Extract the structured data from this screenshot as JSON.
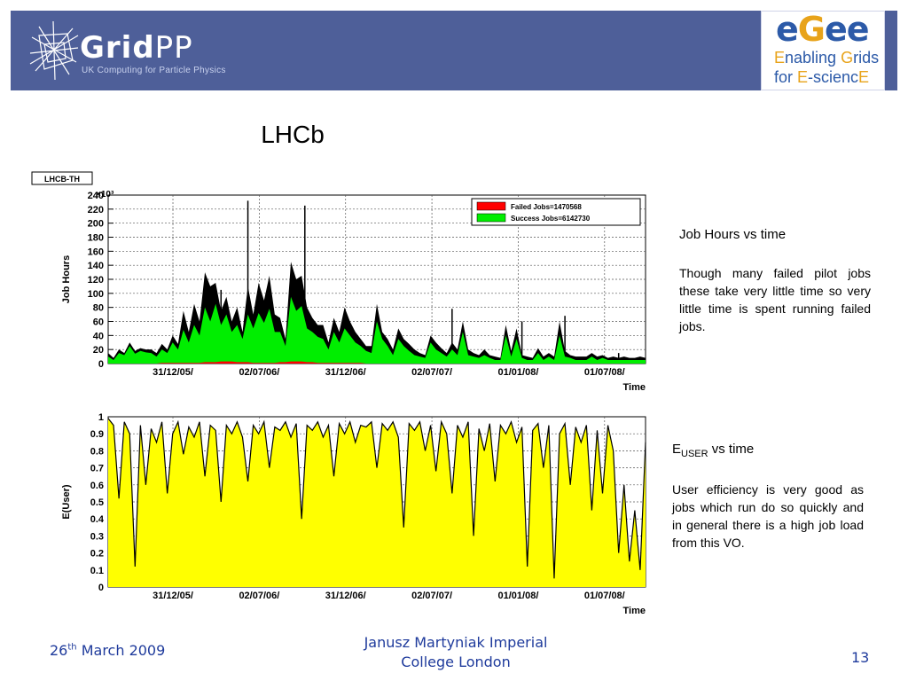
{
  "header": {
    "gridpp_name_bold": "Grid",
    "gridpp_name_light": "PP",
    "gridpp_tagline": "UK Computing for Particle Physics",
    "egee_name": {
      "e1": "e",
      "g": "G",
      "e2": "ee"
    },
    "egee_line1": {
      "a": "E",
      "b": "nabling ",
      "c": "G",
      "d": "rids"
    },
    "egee_line2": {
      "a": "for ",
      "b": "E",
      "c": "-scienc",
      "d": "E"
    },
    "bar_color": "#4e5f99"
  },
  "slide": {
    "title": "LHCb",
    "panel1": {
      "heading": "Job Hours vs time",
      "text": "Though many failed pilot jobs these take very little time so very little time is spent running failed jobs."
    },
    "panel2": {
      "heading_main": "E",
      "heading_sub": "USER",
      "heading_rest": " vs time",
      "text": "User efficiency is very good as jobs which run do so quickly and in general there is a high job load from this VO."
    }
  },
  "footer": {
    "date_day": "26",
    "date_suffix": "th",
    "date_rest": " March 2009",
    "author_line1": "Janusz Martyniak Imperial",
    "author_line2": "College London",
    "page": "13"
  },
  "chart_data": [
    {
      "type": "area",
      "title": "LHCB-TH",
      "ylabel": "Job Hours",
      "ylabel_multiplier": "×10³",
      "xlabel": "Time",
      "ylim": [
        0,
        240
      ],
      "yticks": [
        "0",
        "20",
        "40",
        "60",
        "80",
        "100",
        "120",
        "140",
        "160",
        "180",
        "200",
        "220",
        "240"
      ],
      "xticks": [
        "31/12/05/",
        "02/07/06/",
        "31/12/06/",
        "02/07/07/",
        "01/01/08/",
        "01/07/08/"
      ],
      "grid": true,
      "legend_position": "top-right",
      "stacked": true,
      "x_index_range": [
        0,
        100
      ],
      "series": [
        {
          "name": "Failed Jobs=1470568",
          "color": "#ff0000",
          "values": [
            0,
            0,
            0,
            0,
            0,
            0,
            0,
            0,
            0,
            0,
            1,
            1,
            1,
            1,
            1,
            1,
            1,
            1,
            2,
            2,
            2,
            3,
            3,
            3,
            2,
            2,
            2,
            1,
            1,
            1,
            1,
            1,
            2,
            2,
            3,
            3,
            3,
            2,
            2,
            1,
            1,
            1,
            1,
            1,
            1,
            1,
            1,
            1,
            0,
            0,
            0,
            0,
            0,
            0,
            0,
            0,
            0,
            0,
            0,
            0,
            0,
            0,
            0,
            0,
            0,
            0,
            0,
            0,
            0,
            0,
            0,
            0,
            0,
            0,
            0,
            0,
            0,
            0,
            0,
            0,
            0,
            0,
            0,
            0,
            0,
            0,
            0,
            0,
            0,
            0,
            0,
            0,
            0,
            0,
            0,
            0,
            0,
            0,
            0,
            0,
            0
          ]
        },
        {
          "name": "Success Jobs=6142730",
          "color": "#00ee00",
          "values": [
            10,
            5,
            15,
            12,
            25,
            14,
            18,
            16,
            15,
            10,
            20,
            15,
            30,
            20,
            48,
            30,
            55,
            40,
            80,
            60,
            85,
            55,
            70,
            45,
            55,
            35,
            70,
            50,
            72,
            58,
            78,
            45,
            45,
            25,
            95,
            75,
            82,
            50,
            45,
            38,
            35,
            20,
            45,
            30,
            50,
            40,
            30,
            25,
            18,
            15,
            60,
            35,
            25,
            12,
            35,
            25,
            18,
            12,
            10,
            8,
            30,
            20,
            15,
            10,
            20,
            12,
            45,
            12,
            10,
            8,
            12,
            8,
            5,
            5,
            40,
            10,
            35,
            8,
            5,
            5,
            15,
            5,
            10,
            5,
            40,
            10,
            8,
            5,
            5,
            5,
            10,
            5,
            8,
            5,
            5,
            5,
            5,
            5,
            5,
            5,
            5
          ]
        }
      ],
      "envelope_values": [
        15,
        8,
        20,
        15,
        30,
        18,
        22,
        20,
        20,
        15,
        28,
        20,
        40,
        28,
        75,
        45,
        85,
        60,
        130,
        110,
        115,
        75,
        95,
        60,
        80,
        45,
        110,
        70,
        115,
        90,
        125,
        70,
        65,
        35,
        145,
        120,
        125,
        80,
        65,
        55,
        55,
        30,
        65,
        45,
        80,
        60,
        45,
        35,
        25,
        25,
        85,
        45,
        35,
        20,
        50,
        35,
        28,
        20,
        15,
        12,
        40,
        30,
        22,
        15,
        30,
        20,
        60,
        20,
        15,
        12,
        20,
        12,
        10,
        8,
        55,
        18,
        50,
        12,
        10,
        8,
        22,
        10,
        15,
        10,
        60,
        18,
        12,
        10,
        10,
        10,
        15,
        10,
        12,
        8,
        10,
        8,
        10,
        8,
        8,
        10,
        8
      ],
      "spikes": [
        {
          "x": 26,
          "y": 232
        },
        {
          "x": 21,
          "y": 105
        },
        {
          "x": 36.6,
          "y": 225
        },
        {
          "x": 64,
          "y": 78
        },
        {
          "x": 77,
          "y": 60
        },
        {
          "x": 85,
          "y": 68
        },
        {
          "x": 95,
          "y": 15
        }
      ]
    },
    {
      "type": "area",
      "title": "",
      "ylabel": "E(User)",
      "xlabel": "Time",
      "ylim": [
        0,
        1
      ],
      "yticks": [
        "0",
        "0.1",
        "0.2",
        "0.3",
        "0.4",
        "0.5",
        "0.6",
        "0.7",
        "0.8",
        "0.9",
        "1"
      ],
      "xticks": [
        "31/12/05/",
        "02/07/06/",
        "31/12/06/",
        "02/07/07/",
        "01/01/08/",
        "01/07/08/"
      ],
      "grid": true,
      "x_index_range": [
        0,
        100
      ],
      "series": [
        {
          "name": "",
          "color": "#ffff00",
          "values": [
            0.99,
            0.95,
            0.52,
            0.97,
            0.9,
            0.12,
            0.95,
            0.6,
            0.93,
            0.85,
            0.97,
            0.55,
            0.9,
            0.97,
            0.78,
            0.94,
            0.88,
            0.97,
            0.65,
            0.95,
            0.92,
            0.5,
            0.95,
            0.9,
            0.97,
            0.88,
            0.62,
            0.95,
            0.9,
            0.97,
            0.7,
            0.94,
            0.92,
            0.97,
            0.88,
            0.96,
            0.4,
            0.95,
            0.92,
            0.97,
            0.88,
            0.95,
            0.65,
            0.96,
            0.9,
            0.97,
            0.85,
            0.95,
            0.94,
            0.97,
            0.7,
            0.96,
            0.92,
            0.97,
            0.88,
            0.35,
            0.96,
            0.92,
            0.97,
            0.8,
            0.95,
            0.68,
            0.97,
            0.9,
            0.55,
            0.95,
            0.88,
            0.97,
            0.3,
            0.93,
            0.8,
            0.96,
            0.62,
            0.95,
            0.9,
            0.97,
            0.85,
            0.94,
            0.12,
            0.92,
            0.96,
            0.7,
            0.95,
            0.05,
            0.9,
            0.96,
            0.6,
            0.94,
            0.85,
            0.95,
            0.45,
            0.92,
            0.55,
            0.95,
            0.8,
            0.2,
            0.6,
            0.15,
            0.45,
            0.1,
            0.85
          ]
        }
      ]
    }
  ]
}
